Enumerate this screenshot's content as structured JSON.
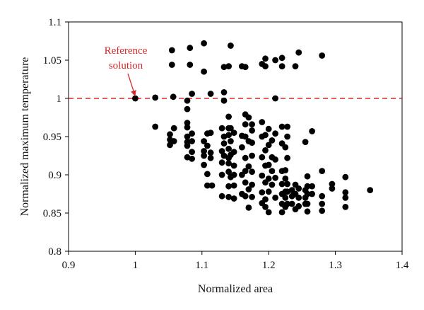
{
  "chart_data": {
    "type": "scatter",
    "title": "",
    "xlabel": "Normalized area",
    "ylabel": "Normalized maximum temperature",
    "xlim": [
      0.9,
      1.4
    ],
    "ylim": [
      0.8,
      1.1
    ],
    "xticks": [
      0.9,
      1.0,
      1.1,
      1.2,
      1.3,
      1.4
    ],
    "xtick_labels": [
      "0.9",
      "1",
      "1.1",
      "1.2",
      "1.3",
      "1.4"
    ],
    "yticks": [
      0.8,
      0.85,
      0.9,
      0.95,
      1.0,
      1.05,
      1.1
    ],
    "ytick_labels": [
      "0.8",
      "0.85",
      "0.9",
      "0.95",
      "1",
      "1.05",
      "1.1"
    ],
    "grid": false,
    "marker_color": "#000000",
    "reference_line": {
      "y": 1.0,
      "style": "dashed",
      "color": "#d42a2a"
    },
    "annotation": {
      "lines": [
        "Reference",
        "solution"
      ],
      "color": "#d42a2a",
      "target": [
        1.0,
        1.0
      ]
    },
    "points": [
      [
        1.0,
        1.0
      ],
      [
        1.03,
        1.001
      ],
      [
        1.03,
        0.963
      ],
      [
        1.052,
        0.953
      ],
      [
        1.052,
        0.946
      ],
      [
        1.052,
        0.939
      ],
      [
        1.055,
        1.063
      ],
      [
        1.055,
        1.044
      ],
      [
        1.057,
        1.002
      ],
      [
        1.058,
        0.961
      ],
      [
        1.058,
        0.944
      ],
      [
        1.078,
        0.997
      ],
      [
        1.078,
        0.986
      ],
      [
        1.078,
        0.968
      ],
      [
        1.078,
        0.962
      ],
      [
        1.078,
        0.95
      ],
      [
        1.078,
        0.943
      ],
      [
        1.078,
        0.938
      ],
      [
        1.078,
        0.923
      ],
      [
        1.082,
        1.066
      ],
      [
        1.082,
        1.044
      ],
      [
        1.085,
        1.006
      ],
      [
        1.085,
        0.954
      ],
      [
        1.085,
        0.944
      ],
      [
        1.085,
        0.93
      ],
      [
        1.085,
        0.921
      ],
      [
        1.103,
        1.072
      ],
      [
        1.103,
        1.035
      ],
      [
        1.103,
        0.944
      ],
      [
        1.103,
        0.931
      ],
      [
        1.103,
        0.925
      ],
      [
        1.103,
        0.913
      ],
      [
        1.108,
        0.954
      ],
      [
        1.108,
        0.938
      ],
      [
        1.108,
        0.901
      ],
      [
        1.108,
        0.886
      ],
      [
        1.113,
        1.006
      ],
      [
        1.113,
        0.955
      ],
      [
        1.113,
        0.929
      ],
      [
        1.113,
        0.922
      ],
      [
        1.115,
        0.886
      ],
      [
        1.13,
        0.961
      ],
      [
        1.13,
        0.931
      ],
      [
        1.13,
        0.916
      ],
      [
        1.13,
        0.9
      ],
      [
        1.13,
        0.872
      ],
      [
        1.133,
        1.041
      ],
      [
        1.133,
        1.008
      ],
      [
        1.133,
        0.997
      ],
      [
        1.133,
        0.95
      ],
      [
        1.133,
        0.941
      ],
      [
        1.133,
        0.925
      ],
      [
        1.14,
        1.042
      ],
      [
        1.14,
        0.976
      ],
      [
        1.14,
        0.961
      ],
      [
        1.14,
        0.952
      ],
      [
        1.14,
        0.934
      ],
      [
        1.14,
        0.922
      ],
      [
        1.14,
        0.915
      ],
      [
        1.14,
        0.904
      ],
      [
        1.14,
        0.885
      ],
      [
        1.14,
        0.871
      ],
      [
        1.143,
        1.069
      ],
      [
        1.143,
        0.961
      ],
      [
        1.143,
        0.944
      ],
      [
        1.143,
        0.926
      ],
      [
        1.143,
        0.897
      ],
      [
        1.148,
        0.955
      ],
      [
        1.148,
        0.93
      ],
      [
        1.148,
        0.912
      ],
      [
        1.148,
        0.9
      ],
      [
        1.148,
        0.886
      ],
      [
        1.148,
        0.869
      ],
      [
        1.16,
        1.042
      ],
      [
        1.16,
        0.951
      ],
      [
        1.16,
        0.936
      ],
      [
        1.16,
        0.9
      ],
      [
        1.16,
        0.875
      ],
      [
        1.165,
        1.041
      ],
      [
        1.165,
        0.979
      ],
      [
        1.165,
        0.966
      ],
      [
        1.165,
        0.95
      ],
      [
        1.165,
        0.922
      ],
      [
        1.165,
        0.905
      ],
      [
        1.165,
        0.89
      ],
      [
        1.165,
        0.872
      ],
      [
        1.17,
        0.975
      ],
      [
        1.17,
        0.944
      ],
      [
        1.17,
        0.911
      ],
      [
        1.17,
        0.881
      ],
      [
        1.17,
        0.857
      ],
      [
        1.175,
        0.966
      ],
      [
        1.175,
        0.958
      ],
      [
        1.175,
        0.942
      ],
      [
        1.175,
        0.925
      ],
      [
        1.175,
        0.904
      ],
      [
        1.175,
        0.887
      ],
      [
        1.175,
        0.871
      ],
      [
        1.19,
        1.045
      ],
      [
        1.19,
        0.969
      ],
      [
        1.19,
        0.95
      ],
      [
        1.19,
        0.923
      ],
      [
        1.19,
        0.899
      ],
      [
        1.19,
        0.877
      ],
      [
        1.19,
        0.863
      ],
      [
        1.195,
        1.052
      ],
      [
        1.195,
        1.042
      ],
      [
        1.195,
        0.952
      ],
      [
        1.195,
        0.932
      ],
      [
        1.195,
        0.912
      ],
      [
        1.195,
        0.89
      ],
      [
        1.195,
        0.868
      ],
      [
        1.195,
        0.858
      ],
      [
        1.2,
        0.96
      ],
      [
        1.2,
        0.939
      ],
      [
        1.2,
        0.913
      ],
      [
        1.2,
        0.895
      ],
      [
        1.2,
        0.878
      ],
      [
        1.2,
        0.851
      ],
      [
        1.205,
        0.945
      ],
      [
        1.205,
        0.923
      ],
      [
        1.205,
        0.905
      ],
      [
        1.205,
        0.887
      ],
      [
        1.21,
        1.05
      ],
      [
        1.21,
        1.0
      ],
      [
        1.21,
        0.954
      ],
      [
        1.21,
        0.92
      ],
      [
        1.21,
        0.896
      ],
      [
        1.21,
        0.87
      ],
      [
        1.22,
        1.053
      ],
      [
        1.22,
        1.042
      ],
      [
        1.22,
        0.963
      ],
      [
        1.22,
        0.941
      ],
      [
        1.22,
        0.905
      ],
      [
        1.22,
        0.888
      ],
      [
        1.22,
        0.875
      ],
      [
        1.22,
        0.862
      ],
      [
        1.22,
        0.851
      ],
      [
        1.225,
        0.936
      ],
      [
        1.225,
        0.906
      ],
      [
        1.225,
        0.895
      ],
      [
        1.225,
        0.878
      ],
      [
        1.225,
        0.87
      ],
      [
        1.225,
        0.858
      ],
      [
        1.228,
        0.963
      ],
      [
        1.228,
        0.95
      ],
      [
        1.228,
        0.922
      ],
      [
        1.228,
        0.888
      ],
      [
        1.228,
        0.878
      ],
      [
        1.228,
        0.862
      ],
      [
        1.235,
        0.88
      ],
      [
        1.235,
        0.872
      ],
      [
        1.235,
        0.862
      ],
      [
        1.24,
        1.042
      ],
      [
        1.24,
        0.887
      ],
      [
        1.24,
        0.875
      ],
      [
        1.24,
        0.855
      ],
      [
        1.245,
        1.06
      ],
      [
        1.245,
        0.882
      ],
      [
        1.245,
        0.87
      ],
      [
        1.245,
        0.859
      ],
      [
        1.255,
        0.943
      ],
      [
        1.255,
        0.88
      ],
      [
        1.255,
        0.87
      ],
      [
        1.255,
        0.862
      ],
      [
        1.258,
        0.898
      ],
      [
        1.258,
        0.885
      ],
      [
        1.258,
        0.875
      ],
      [
        1.258,
        0.862
      ],
      [
        1.258,
        0.852
      ],
      [
        1.265,
        0.957
      ],
      [
        1.265,
        0.885
      ],
      [
        1.265,
        0.875
      ],
      [
        1.28,
        1.056
      ],
      [
        1.28,
        0.905
      ],
      [
        1.28,
        0.872
      ],
      [
        1.28,
        0.862
      ],
      [
        1.28,
        0.853
      ],
      [
        1.295,
        0.888
      ],
      [
        1.295,
        0.882
      ],
      [
        1.315,
        0.897
      ],
      [
        1.315,
        0.877
      ],
      [
        1.315,
        0.87
      ],
      [
        1.315,
        0.858
      ],
      [
        1.352,
        0.88
      ]
    ]
  }
}
